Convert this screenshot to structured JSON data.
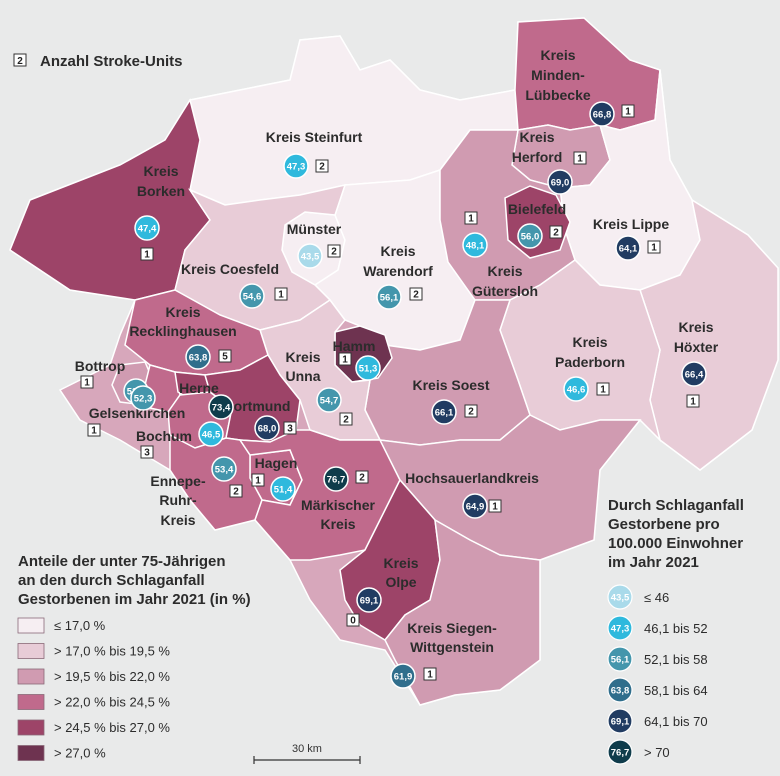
{
  "stroke_units_label": "Anzahl Stroke-Units",
  "stroke_units_sample": "2",
  "share_legend": {
    "title_lines": [
      "Anteile der unter 75-Jährigen",
      "an den durch Schlaganfall",
      "Gestorbenen im Jahr 2021 (in %)"
    ],
    "classes": [
      {
        "label": "≤ 17,0 %",
        "color": "#f6eef2"
      },
      {
        "label": "> 17,0 % bis 19,5 %",
        "color": "#e8ccd7"
      },
      {
        "label": "> 19,5 % bis 22,0 %",
        "color": "#d09bb1"
      },
      {
        "label": "> 22,0 % bis 24,5 %",
        "color": "#c06a8c"
      },
      {
        "label": "> 24,5 % bis 27,0 %",
        "color": "#9d4468"
      },
      {
        "label": "> 27,0 %",
        "color": "#6e3350"
      }
    ]
  },
  "death_legend": {
    "title_lines": [
      "Durch Schlaganfall",
      "Gestorbene pro",
      "100.000 Einwohner",
      "im Jahr 2021"
    ],
    "classes": [
      {
        "sample": "43,5",
        "label": "≤ 46",
        "color": "#a9daea"
      },
      {
        "sample": "47,3",
        "label": "46,1 bis 52",
        "color": "#2fb9dd"
      },
      {
        "sample": "56,1",
        "label": "52,1 bis 58",
        "color": "#4496ac"
      },
      {
        "sample": "63,8",
        "label": "58,1 bis 64",
        "color": "#306e8c"
      },
      {
        "sample": "69,1",
        "label": "64,1 bis 70",
        "color": "#213c62"
      },
      {
        "sample": "76,7",
        "label": "> 70",
        "color": "#0f3c4b"
      }
    ]
  },
  "scale_label": "30 km",
  "regions": [
    {
      "name": "Kreis Steinfurt",
      "death": "47,3",
      "units": "2",
      "share_class": 0
    },
    {
      "name": "Kreis Borken",
      "death": "47,4",
      "units": "1",
      "share_class": 4
    },
    {
      "name": "Münster",
      "death": "43,5",
      "units": "2",
      "share_class": 0
    },
    {
      "name": "Kreis Warendorf",
      "death": "56,1",
      "units": "2",
      "share_class": 0
    },
    {
      "name": "Kreis Coesfeld",
      "death": "54,6",
      "units": "1",
      "share_class": 1
    },
    {
      "name": "Kreis Minden-Lübbecke",
      "death": "66,8",
      "units": "1",
      "share_class": 3
    },
    {
      "name": "Kreis Herford",
      "death": "69,0",
      "units": "1",
      "share_class": 2
    },
    {
      "name": "Bielefeld",
      "death": "56,0",
      "units": "2",
      "share_class": 4
    },
    {
      "name": "Kreis Gütersloh",
      "death": "48,1",
      "units": "1",
      "share_class": 2
    },
    {
      "name": "Kreis Lippe",
      "death": "64,1",
      "units": "1",
      "share_class": 0
    },
    {
      "name": "Kreis Recklinghausen",
      "death": "63,8",
      "units": "5",
      "share_class": 3
    },
    {
      "name": "Bottrop",
      "death": "52,9",
      "units": "1",
      "share_class": 2
    },
    {
      "name": "Gelsenkirchen",
      "death": "52,3",
      "units": "1",
      "share_class": 3
    },
    {
      "name": "Herne",
      "death": "73,4",
      "units": "",
      "share_class": 4
    },
    {
      "name": "Bochum",
      "death": "46,5",
      "units": "3",
      "share_class": 3
    },
    {
      "name": "Dortmund",
      "death": "68,0",
      "units": "3",
      "share_class": 4
    },
    {
      "name": "Hamm",
      "death": "51,3",
      "units": "1",
      "share_class": 5
    },
    {
      "name": "Kreis Unna",
      "death": "54,7",
      "units": "2",
      "share_class": 1
    },
    {
      "name": "Kreis Soest",
      "death": "66,1",
      "units": "2",
      "share_class": 2
    },
    {
      "name": "Kreis Paderborn",
      "death": "46,6",
      "units": "1",
      "share_class": 1
    },
    {
      "name": "Kreis Höxter",
      "death": "66,4",
      "units": "1",
      "share_class": 1
    },
    {
      "name": "Hagen",
      "death": "51,4",
      "units": "1",
      "share_class": 3
    },
    {
      "name": "Ennepe-Ruhr-Kreis",
      "death": "53,4",
      "units": "2",
      "share_class": 3
    },
    {
      "name": "Märkischer Kreis",
      "death": "76,7",
      "units": "2",
      "share_class": 3
    },
    {
      "name": "Hochsauerlandkreis",
      "death": "64,9",
      "units": "1",
      "share_class": 2
    },
    {
      "name": "Kreis Olpe",
      "death": "69,1",
      "units": "0",
      "share_class": 4
    },
    {
      "name": "Kreis Siegen-Wittgenstein",
      "death": "61,9",
      "units": "1",
      "share_class": 2
    }
  ]
}
